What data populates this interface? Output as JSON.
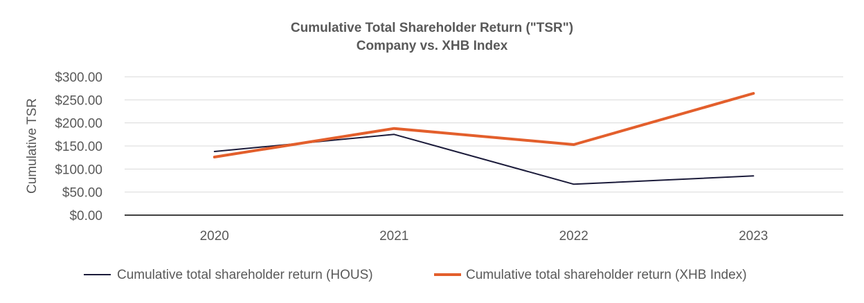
{
  "chart_data": {
    "type": "line",
    "title": [
      "Cumulative Total Shareholder Return (\"TSR\")",
      "Company vs. XHB Index"
    ],
    "xlabel": "",
    "ylabel": "Cumulative TSR",
    "categories": [
      "2020",
      "2021",
      "2022",
      "2023"
    ],
    "ylim": [
      0,
      300
    ],
    "yticks": [
      0,
      50,
      100,
      150,
      200,
      250,
      300
    ],
    "ytick_labels": [
      "$0.00",
      "$50.00",
      "$100.00",
      "$150.00",
      "$200.00",
      "$250.00",
      "$300.00"
    ],
    "grid": true,
    "legend_position": "bottom",
    "series": [
      {
        "name": "Cumulative total shareholder return (HOUS)",
        "values": [
          138,
          175,
          67,
          85
        ],
        "color": "#1b1b3a"
      },
      {
        "name": "Cumulative total shareholder return (XHB Index)",
        "values": [
          126,
          188,
          153,
          264
        ],
        "color": "#e35f2c"
      }
    ]
  }
}
